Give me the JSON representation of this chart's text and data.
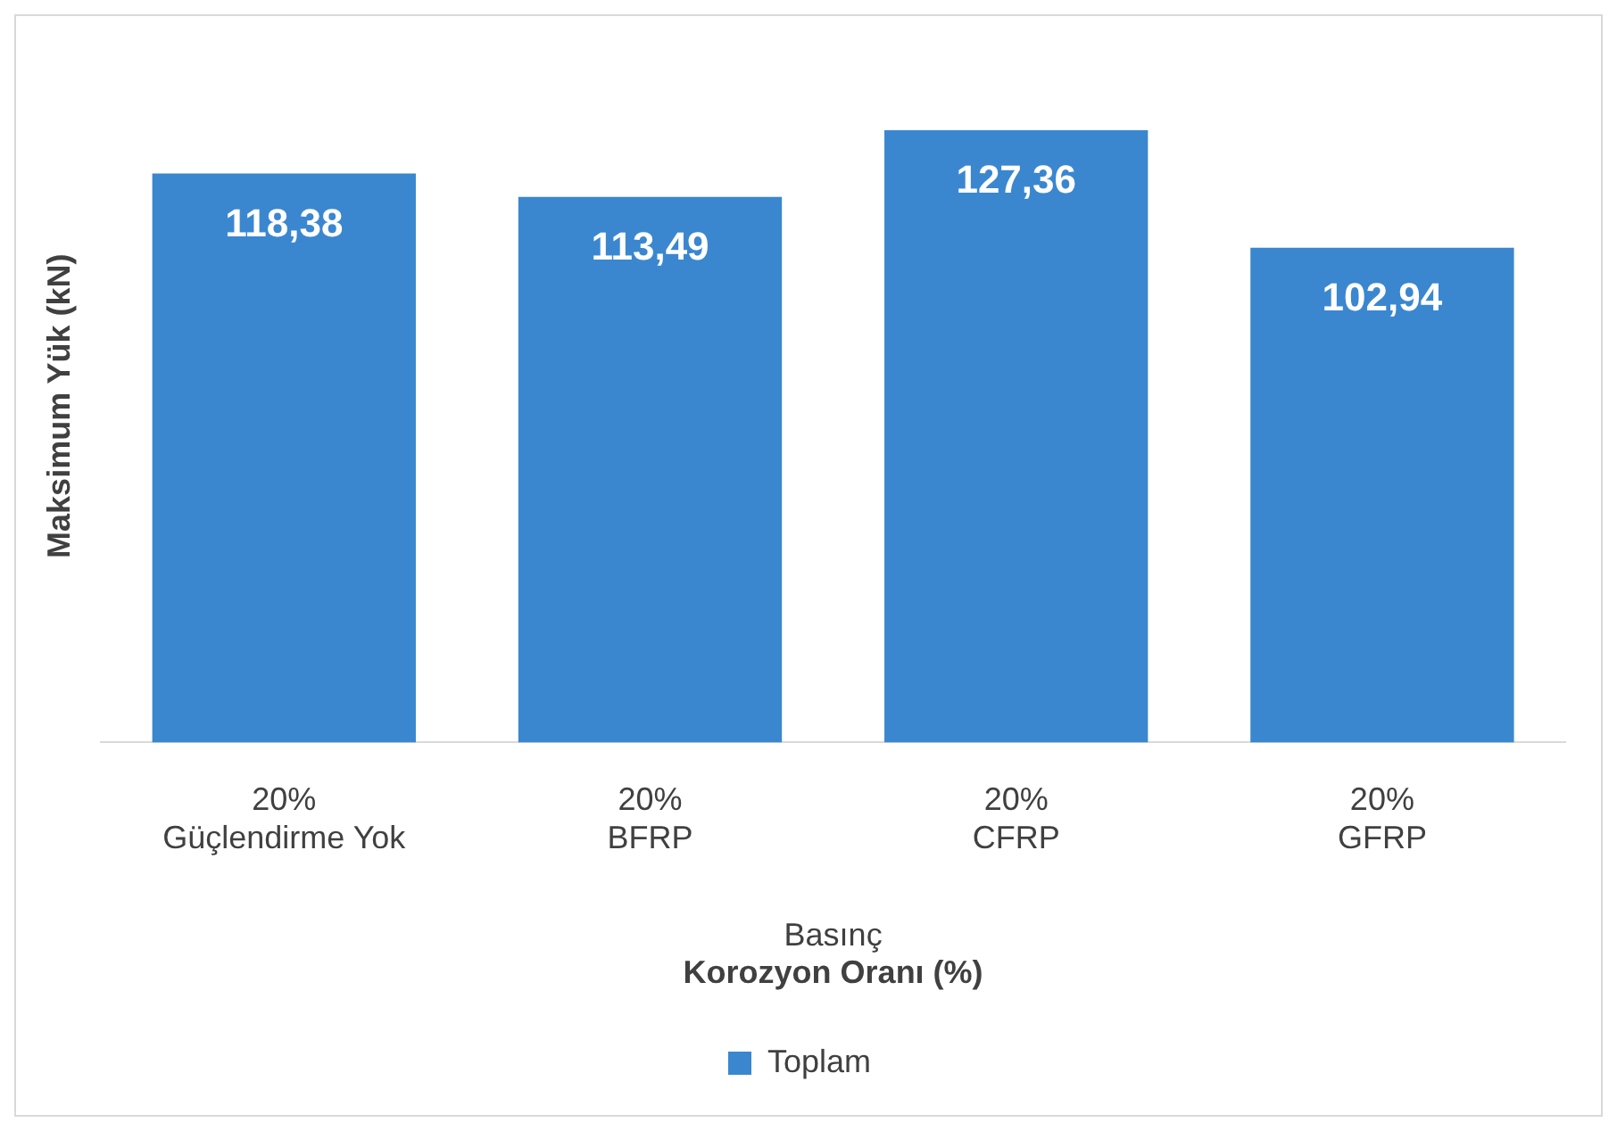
{
  "chart_data": {
    "type": "bar",
    "xlabel": "Korozyon Oranı (%)",
    "ylabel": "Maksimum Yük (kN)",
    "annotations": [
      "Basınç"
    ],
    "categories": [
      "20%\nGüçlendirme Yok",
      "20%\nBFRP",
      "20%\nCFRP",
      "20%\nGFRP"
    ],
    "series": [
      {
        "name": "Toplam",
        "color": "#3a87d0",
        "values": [
          118.38,
          113.49,
          127.36,
          102.94
        ],
        "value_labels": [
          "118,38",
          "113,49",
          "127,36",
          "102,94"
        ]
      }
    ],
    "legend": "bottom"
  }
}
